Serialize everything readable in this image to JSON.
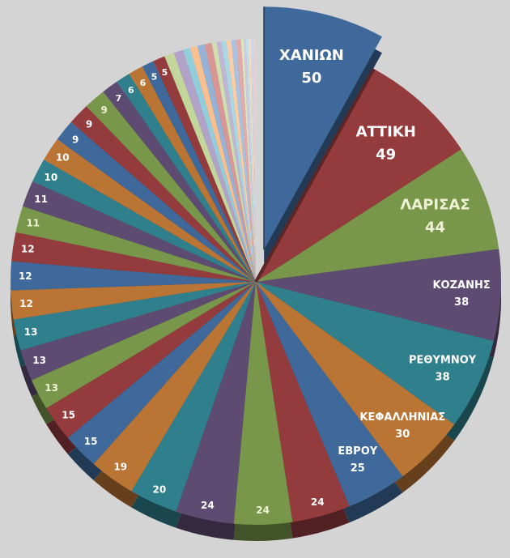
{
  "background_color": "#d4d4d4",
  "chart_data": {
    "type": "pie",
    "style": "3d-exploded-first-slice",
    "title": "",
    "legend": "none",
    "total": 626,
    "label_color": "#ffffff",
    "label_color_on_green": "#eef1d3",
    "palette_main": [
      "#3e699a",
      "#943b3d",
      "#78974a",
      "#5e4b71",
      "#2f808c",
      "#ba7434"
    ],
    "palette_tail": [
      "#c3d69b",
      "#b2a2c7",
      "#92cddc",
      "#fabf8f",
      "#95b3d7",
      "#d99694",
      "#cfdfae",
      "#c2b5d3",
      "#a8d8e4",
      "#fbcda6",
      "#a9c2e0",
      "#e2aba9",
      "#dbe7c1",
      "#d2c8df",
      "#bde2eb",
      "#fcdabc",
      "#cdd9ea",
      "#eccfce"
    ],
    "slices": [
      {
        "label": "ΧΑΝΙΩΝ",
        "value": 50,
        "exploded": true
      },
      {
        "label": "ΑΤΤΙΚΗ",
        "value": 49
      },
      {
        "label": "ΛΑΡΙΣΑΣ",
        "value": 44
      },
      {
        "label": "ΚΟΖΑΝΗΣ",
        "value": 38
      },
      {
        "label": "ΡΕΘΥΜΝΟΥ",
        "value": 38
      },
      {
        "label": "ΚΕΦΑΛΛΗΝΙΑΣ",
        "value": 30
      },
      {
        "label": "ΕΒΡΟΥ",
        "value": 25
      },
      {
        "label": "",
        "value": 24
      },
      {
        "label": "",
        "value": 24
      },
      {
        "label": "",
        "value": 24
      },
      {
        "label": "",
        "value": 20
      },
      {
        "label": "",
        "value": 19
      },
      {
        "label": "",
        "value": 15
      },
      {
        "label": "",
        "value": 15
      },
      {
        "label": "",
        "value": 13
      },
      {
        "label": "",
        "value": 13
      },
      {
        "label": "",
        "value": 13
      },
      {
        "label": "",
        "value": 12
      },
      {
        "label": "",
        "value": 12
      },
      {
        "label": "",
        "value": 12
      },
      {
        "label": "",
        "value": 11
      },
      {
        "label": "",
        "value": 11
      },
      {
        "label": "",
        "value": 10
      },
      {
        "label": "",
        "value": 10
      },
      {
        "label": "",
        "value": 9
      },
      {
        "label": "",
        "value": 9
      },
      {
        "label": "",
        "value": 9
      },
      {
        "label": "",
        "value": 7
      },
      {
        "label": "",
        "value": 6
      },
      {
        "label": "",
        "value": 6
      },
      {
        "label": "",
        "value": 5
      },
      {
        "label": "",
        "value": 5
      },
      {
        "label": "",
        "value": 4,
        "value_hidden": true,
        "estimated": true
      },
      {
        "label": "",
        "value": 4,
        "value_hidden": true,
        "estimated": true
      },
      {
        "label": "",
        "value": 3,
        "value_hidden": true,
        "estimated": true
      },
      {
        "label": "",
        "value": 3,
        "value_hidden": true,
        "estimated": true
      },
      {
        "label": "",
        "value": 3,
        "value_hidden": true,
        "estimated": true
      },
      {
        "label": "",
        "value": 3,
        "value_hidden": true,
        "estimated": true
      },
      {
        "label": "",
        "value": 2,
        "value_hidden": true,
        "estimated": true
      },
      {
        "label": "",
        "value": 2,
        "value_hidden": true,
        "estimated": true
      },
      {
        "label": "",
        "value": 2,
        "value_hidden": true,
        "estimated": true
      },
      {
        "label": "",
        "value": 2,
        "value_hidden": true,
        "estimated": true
      },
      {
        "label": "",
        "value": 2,
        "value_hidden": true,
        "estimated": true
      },
      {
        "label": "",
        "value": 2,
        "value_hidden": true,
        "estimated": true
      },
      {
        "label": "",
        "value": 1,
        "value_hidden": true,
        "estimated": true
      },
      {
        "label": "",
        "value": 1,
        "value_hidden": true,
        "estimated": true
      },
      {
        "label": "",
        "value": 1,
        "value_hidden": true,
        "estimated": true
      },
      {
        "label": "",
        "value": 1,
        "value_hidden": true,
        "estimated": true
      },
      {
        "label": "",
        "value": 1,
        "value_hidden": true,
        "estimated": true
      },
      {
        "label": "",
        "value": 1,
        "value_hidden": true,
        "estimated": true
      }
    ]
  }
}
